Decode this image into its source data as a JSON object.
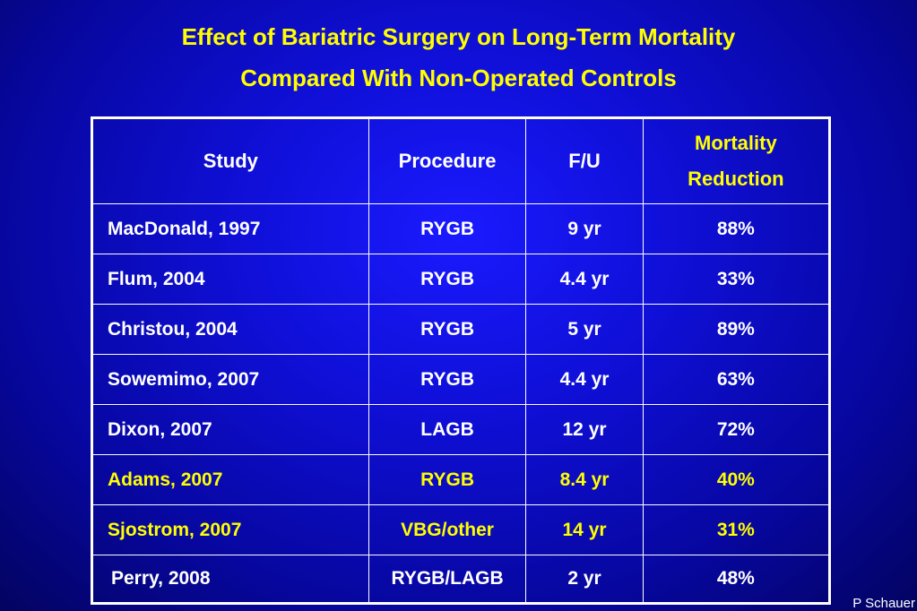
{
  "title": {
    "line1": "Effect of Bariatric Surgery on Long-Term Mortality",
    "line2": "Compared With Non-Operated Controls"
  },
  "table": {
    "headers": {
      "study": "Study",
      "procedure": "Procedure",
      "followup": "F/U",
      "mortality_line1": "Mortality",
      "mortality_line2": "Reduction"
    },
    "rows": [
      {
        "study": "MacDonald, 1997",
        "procedure": "RYGB",
        "followup": "9 yr",
        "mortality_reduction": "88%"
      },
      {
        "study": "Flum, 2004",
        "procedure": "RYGB",
        "followup": "4.4 yr",
        "mortality_reduction": "33%"
      },
      {
        "study": "Christou, 2004",
        "procedure": "RYGB",
        "followup": "5 yr",
        "mortality_reduction": "89%"
      },
      {
        "study": "Sowemimo, 2007",
        "procedure": "RYGB",
        "followup": "4.4 yr",
        "mortality_reduction": "63%"
      },
      {
        "study": "Dixon, 2007",
        "procedure": "LAGB",
        "followup": "12 yr",
        "mortality_reduction": "72%"
      },
      {
        "study": "Adams, 2007",
        "procedure": "RYGB",
        "followup": "8.4 yr",
        "mortality_reduction": "40%"
      },
      {
        "study": "Sjostrom, 2007",
        "procedure": "VBG/other",
        "followup": "14 yr",
        "mortality_reduction": "31%"
      },
      {
        "study": "Perry, 2008",
        "procedure": "RYGB/LAGB",
        "followup": "2 yr",
        "mortality_reduction": "48%"
      }
    ]
  },
  "credit": "P Schauer",
  "colors": {
    "background": "#0f0fd6",
    "title": "#ffff00",
    "highlight_text": "#ffff00",
    "normal_text": "#ffffff",
    "border": "#ffffff"
  }
}
